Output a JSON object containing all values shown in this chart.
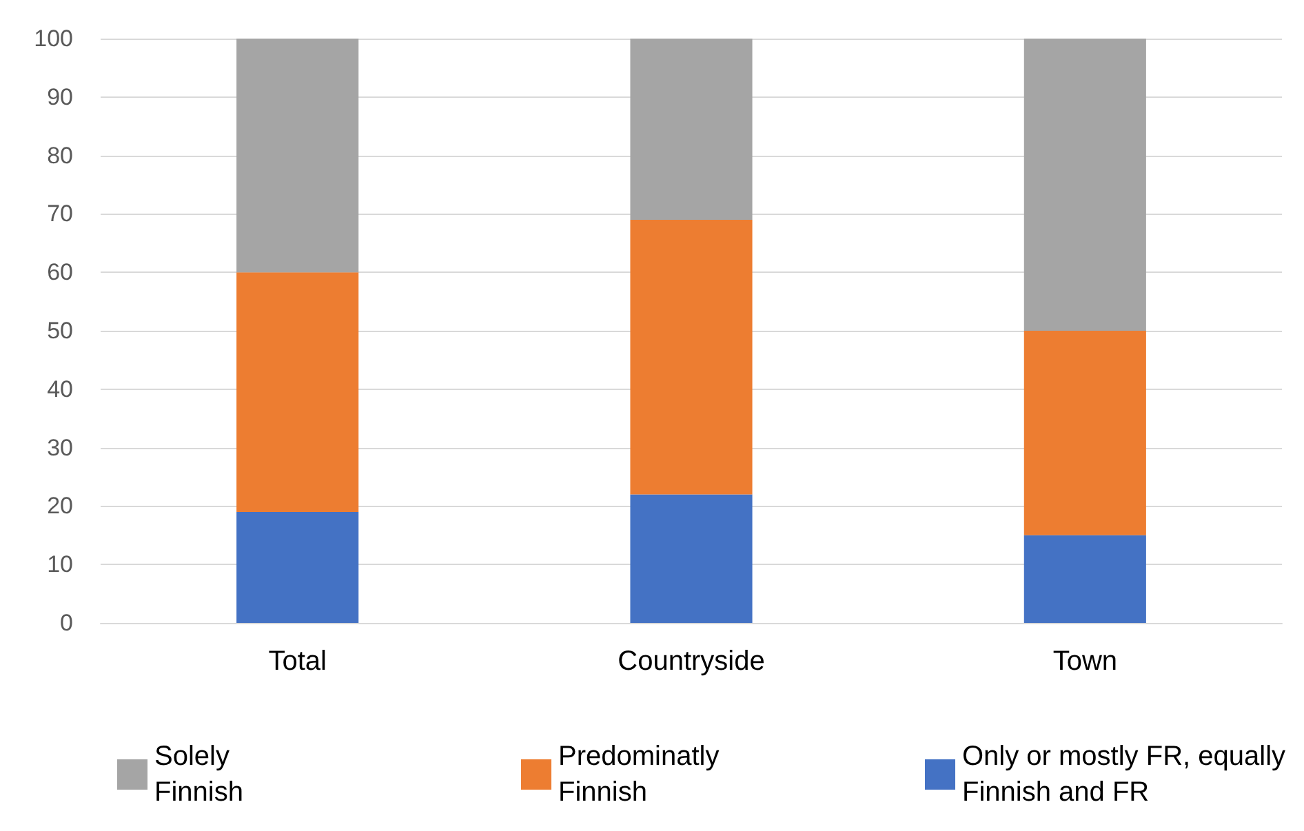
{
  "chart_data": {
    "type": "bar",
    "stacked": true,
    "categories": [
      "Total",
      "Countryside",
      "Town"
    ],
    "series": [
      {
        "name": "Only or mostly FR, equally Finnish and FR",
        "color": "#4472c4",
        "values": [
          19,
          22,
          15
        ]
      },
      {
        "name": "Predominatly Finnish",
        "color": "#ed7d31",
        "values": [
          41,
          47,
          35
        ]
      },
      {
        "name": "Solely Finnish",
        "color": "#a5a5a5",
        "values": [
          40,
          31,
          50
        ]
      }
    ],
    "ylim": [
      0,
      100
    ],
    "yticks": [
      0,
      10,
      20,
      30,
      40,
      50,
      60,
      70,
      80,
      90,
      100
    ],
    "grid": "y",
    "legend": "bottom"
  }
}
